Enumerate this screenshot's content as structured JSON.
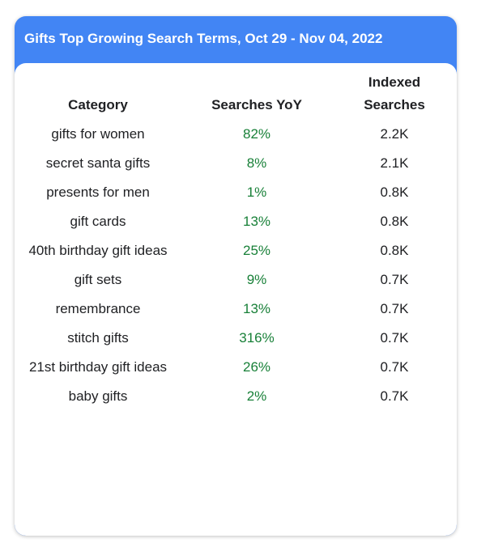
{
  "header": {
    "title": "Gifts Top Growing Search Terms, Oct 29 - Nov 04, 2022"
  },
  "table": {
    "columns": [
      "Category",
      "Searches YoY",
      "Indexed Searches"
    ],
    "rows": [
      [
        "gifts for women",
        "82%",
        "2.2K"
      ],
      [
        "secret santa gifts",
        "8%",
        "2.1K"
      ],
      [
        "presents for men",
        "1%",
        "0.8K"
      ],
      [
        "gift cards",
        "13%",
        "0.8K"
      ],
      [
        "40th birthday gift ideas",
        "25%",
        "0.8K"
      ],
      [
        "gift sets",
        "9%",
        "0.7K"
      ],
      [
        "remembrance",
        "13%",
        "0.7K"
      ],
      [
        "stitch gifts",
        "316%",
        "0.7K"
      ],
      [
        "21st birthday gift ideas",
        "26%",
        "0.7K"
      ],
      [
        "baby gifts",
        "2%",
        "0.7K"
      ]
    ]
  }
}
